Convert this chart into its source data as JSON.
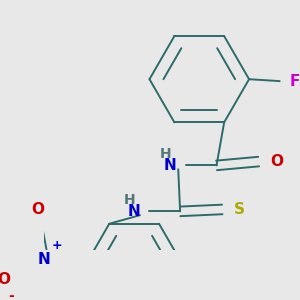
{
  "bg_color": "#e8e8e8",
  "bond_color": "#2d6b6b",
  "bond_width": 1.4,
  "dbo": 0.05,
  "atom_colors": {
    "N": "#0000cc",
    "O": "#cc0000",
    "F": "#cc00cc",
    "S": "#aaaa00",
    "H": "#557777"
  },
  "font_size": 11,
  "fig_size": [
    3.0,
    3.0
  ],
  "dpi": 100
}
